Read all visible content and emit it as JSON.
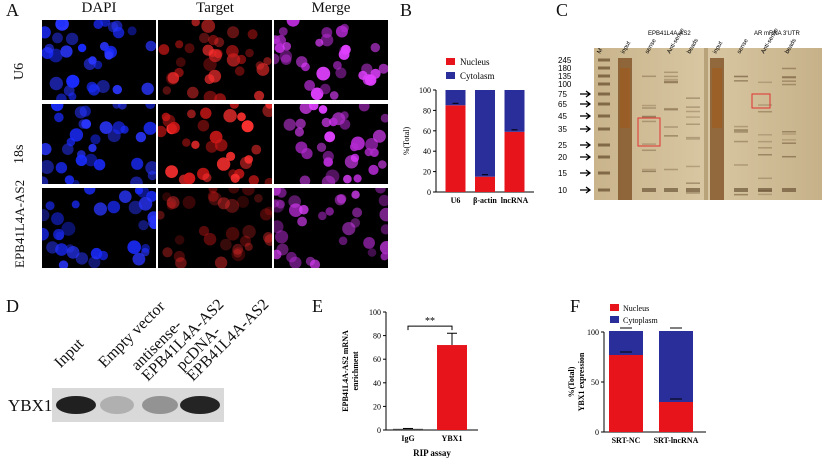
{
  "panels": {
    "A": {
      "letter": "A",
      "columns": [
        "DAPI",
        "Target",
        "Merge"
      ],
      "rows": [
        "U6",
        "18s",
        "EPB41L4A-AS2"
      ]
    },
    "B": {
      "letter": "B",
      "legend": [
        "Nucleus",
        "Cytolasm"
      ],
      "ylabel": "%(Total)",
      "colors": {
        "nucleus": "#e8141c",
        "cytoplasm": "#2a2e9a"
      }
    },
    "C": {
      "letter": "C",
      "headers": [
        "EPB41L4A-AS2",
        "AR mRNA 3'UTR"
      ],
      "lanes": [
        "M",
        "input",
        "sense",
        "Anti-sense",
        "beads",
        "input",
        "sense",
        "Anti-sense",
        "beads"
      ],
      "markers": [
        "245",
        "180",
        "135",
        "100",
        "75",
        "65",
        "45",
        "35",
        "25",
        "20",
        "15",
        "10"
      ]
    },
    "D": {
      "letter": "D",
      "lanes": [
        "Input",
        "Empty vector",
        "antisense-\nEPB41L4A-AS2",
        "pcDNA-\nEPB41L4A-AS2"
      ],
      "protein": "YBX1"
    },
    "E": {
      "letter": "E",
      "ylabel": "EPB41L4A-AS2 mRNA\nenrichment",
      "xlabel": "RIP assay",
      "significance": "**"
    },
    "F": {
      "letter": "F",
      "legend": [
        "Nucleus",
        "Cytoplasm"
      ],
      "ylabel": "%(Total)\nYBX1 expression"
    }
  },
  "chart_data": [
    {
      "panel": "B",
      "type": "bar",
      "categories": [
        "U6",
        "β-actin",
        "lncRNA"
      ],
      "series": [
        {
          "name": "Nucleus",
          "values": [
            85,
            15,
            59
          ]
        },
        {
          "name": "Cytolasm",
          "values": [
            15,
            85,
            41
          ]
        }
      ],
      "ylim": [
        0,
        100
      ],
      "yticks": [
        0,
        20,
        40,
        60,
        80,
        100
      ],
      "ylabel": "%(Total)",
      "stacked": true
    },
    {
      "panel": "E",
      "type": "bar",
      "categories": [
        "IgG",
        "YBX1"
      ],
      "values": [
        1,
        72
      ],
      "errors": [
        0.3,
        10
      ],
      "ylim": [
        0,
        100
      ],
      "yticks": [
        0,
        20,
        40,
        60,
        80,
        100
      ],
      "xlabel": "RIP assay",
      "ylabel": "EPB41L4A-AS2 mRNA enrichment",
      "annotation": "**"
    },
    {
      "panel": "F",
      "type": "bar",
      "categories": [
        "SRT-NC",
        "SRT-lncRNA"
      ],
      "series": [
        {
          "name": "Nucleus",
          "values": [
            77,
            30
          ]
        },
        {
          "name": "Cytoplasm",
          "values": [
            24,
            71
          ]
        }
      ],
      "ylim": [
        0,
        100
      ],
      "yticks": [
        0,
        50,
        100
      ],
      "ylabel": "%(Total) YBX1 expression",
      "stacked": true
    }
  ]
}
